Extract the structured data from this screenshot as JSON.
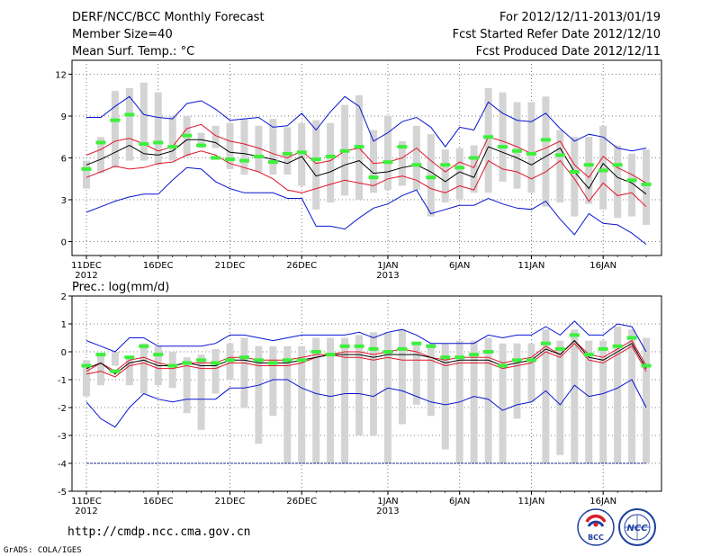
{
  "header": {
    "title": "DERF/NCC/BCC Monthly Forecast",
    "member_size": "Member Size=40",
    "variable": "Mean Surf. Temp.: °C",
    "period": "For 2012/12/11-2013/01/19",
    "started": "Fcst Started Refer Date 2012/12/10",
    "produced": "Fcst Produced Date 2012/12/11"
  },
  "footer": {
    "url": "http://cmdp.ncc.cma.gov.cn",
    "grads": "GrADS: COLA/IGES",
    "logo_bcc": "BCC",
    "logo_ncc": "NCC"
  },
  "colors": {
    "box": "#d4d4d4",
    "mean": "#000000",
    "spread": "#e0162b",
    "extreme": "#0a14d2",
    "obs": "#3cf03c"
  },
  "chart_data": [
    {
      "type": "box-ensemble",
      "title": "Mean Surf. Temp.: °C",
      "ylim": [
        -1,
        13
      ],
      "yticks": [
        0,
        3,
        6,
        9,
        12
      ],
      "xlabels": [
        {
          "day": 1,
          "label": "11DEC",
          "sub": "2012"
        },
        {
          "day": 6,
          "label": "16DEC"
        },
        {
          "day": 11,
          "label": "21DEC"
        },
        {
          "day": 16,
          "label": "26DEC"
        },
        {
          "day": 22,
          "label": "1JAN",
          "sub": "2013"
        },
        {
          "day": 27,
          "label": "6JAN"
        },
        {
          "day": 32,
          "label": "11JAN"
        },
        {
          "day": 37,
          "label": "16JAN"
        }
      ],
      "box_low": [
        3.8,
        4.9,
        5.3,
        5.8,
        5.8,
        5.5,
        5.8,
        6.1,
        6.7,
        6.7,
        5.2,
        4.8,
        5.0,
        4.8,
        4.8,
        4.0,
        2.3,
        2.8,
        3.3,
        3.0,
        3.5,
        3.7,
        4.0,
        3.7,
        1.8,
        2.8,
        3.0,
        3.5,
        3.5,
        4.3,
        3.8,
        3.5,
        2.5,
        2.8,
        1.8,
        2.7,
        2.3,
        1.7,
        1.8,
        1.2
      ],
      "box_high": [
        5.8,
        7.5,
        10.8,
        11.0,
        11.4,
        10.7,
        9.0,
        9.0,
        7.8,
        8.3,
        8.5,
        8.8,
        8.3,
        8.8,
        8.2,
        8.5,
        8.7,
        8.5,
        9.8,
        10.5,
        8.0,
        9.0,
        7.2,
        8.3,
        7.7,
        6.6,
        6.7,
        6.9,
        11.0,
        10.7,
        10.0,
        10.0,
        10.4,
        8.0,
        7.5,
        7.5,
        8.3,
        6.9,
        6.3,
        6.6
      ],
      "mean": [
        5.5,
        5.9,
        6.4,
        6.9,
        6.3,
        6.2,
        6.5,
        7.3,
        7.3,
        7.1,
        6.4,
        6.3,
        6.1,
        5.9,
        5.6,
        6.1,
        4.7,
        5.0,
        5.5,
        5.8,
        4.9,
        5.0,
        5.3,
        5.5,
        5.0,
        4.3,
        5.0,
        4.6,
        6.8,
        6.4,
        6.0,
        5.5,
        6.1,
        6.7,
        5.0,
        3.8,
        5.6,
        4.6,
        4.2,
        3.4
      ],
      "upper": [
        6.2,
        6.6,
        7.2,
        7.4,
        7.0,
        6.5,
        6.8,
        8.1,
        8.4,
        7.6,
        7.2,
        7.0,
        6.7,
        6.3,
        6.0,
        6.5,
        5.6,
        5.8,
        6.5,
        6.7,
        5.6,
        5.7,
        6.0,
        6.7,
        5.8,
        5.0,
        5.7,
        5.3,
        7.5,
        7.2,
        6.8,
        6.3,
        6.7,
        7.2,
        5.5,
        4.6,
        6.1,
        5.3,
        4.8,
        4.2
      ],
      "lower": [
        4.6,
        5.0,
        5.4,
        5.2,
        5.3,
        5.6,
        5.7,
        6.2,
        6.5,
        6.2,
        5.6,
        5.3,
        5.0,
        4.5,
        3.7,
        3.5,
        3.8,
        4.1,
        4.4,
        4.2,
        4.0,
        4.5,
        4.7,
        4.4,
        3.8,
        3.5,
        4.0,
        3.7,
        5.8,
        5.2,
        5.0,
        4.5,
        5.0,
        5.8,
        4.5,
        2.9,
        4.2,
        3.3,
        3.5,
        2.5
      ],
      "maxline": [
        8.9,
        8.9,
        9.7,
        10.4,
        9.1,
        8.9,
        8.8,
        9.9,
        10.1,
        9.5,
        8.7,
        8.8,
        8.9,
        8.2,
        8.3,
        9.2,
        8.0,
        9.3,
        10.4,
        9.7,
        7.2,
        7.8,
        8.6,
        8.9,
        8.2,
        6.8,
        8.2,
        8.0,
        10.0,
        9.2,
        8.7,
        8.6,
        9.2,
        8.1,
        7.2,
        7.7,
        7.5,
        6.7,
        6.5,
        6.7
      ],
      "minline": [
        2.1,
        2.5,
        2.9,
        3.2,
        3.4,
        3.4,
        4.4,
        5.3,
        5.2,
        4.3,
        3.8,
        3.5,
        3.5,
        3.5,
        3.1,
        3.1,
        1.1,
        1.1,
        0.9,
        1.7,
        2.4,
        2.7,
        3.3,
        3.7,
        2.0,
        2.3,
        2.6,
        2.6,
        3.1,
        2.7,
        2.4,
        2.3,
        2.9,
        1.6,
        0.5,
        2.0,
        1.3,
        1.2,
        0.6,
        -0.2
      ],
      "obs": [
        5.2,
        7.1,
        8.7,
        9.1,
        7.0,
        7.1,
        6.8,
        7.6,
        6.9,
        6.0,
        5.9,
        5.8,
        6.1,
        5.7,
        6.3,
        6.4,
        5.9,
        6.1,
        6.5,
        6.8,
        4.6,
        5.7,
        6.8,
        5.5,
        4.6,
        5.5,
        5.3,
        6.0,
        7.5,
        6.8,
        6.5,
        6.3,
        7.3,
        6.2,
        5.0,
        5.5,
        5.1,
        5.5,
        4.4,
        4.1
      ]
    },
    {
      "type": "box-ensemble",
      "title": "Prec.: log(mm/d)",
      "ylim": [
        -5,
        2
      ],
      "yticks": [
        -5,
        -4,
        -3,
        -2,
        -1,
        0,
        1,
        2
      ],
      "floor": -4.0,
      "xlabels": [
        {
          "day": 1,
          "label": "11DEC",
          "sub": "2012"
        },
        {
          "day": 6,
          "label": "16DEC"
        },
        {
          "day": 11,
          "label": "21DEC"
        },
        {
          "day": 16,
          "label": "26DEC"
        },
        {
          "day": 22,
          "label": "1JAN",
          "sub": "2013"
        },
        {
          "day": 27,
          "label": "6JAN"
        },
        {
          "day": 32,
          "label": "11JAN"
        },
        {
          "day": 37,
          "label": "16JAN"
        }
      ],
      "box_low": [
        -1.6,
        -1.2,
        -0.5,
        -1.2,
        -1.5,
        -1.2,
        -1.3,
        -2.2,
        -2.8,
        -1.5,
        -1.0,
        -2.0,
        -3.3,
        -2.3,
        -4.0,
        -4.0,
        -4.0,
        -4.0,
        -4.0,
        -3.0,
        -3.0,
        -4.0,
        -2.6,
        -1.9,
        -2.3,
        -3.5,
        -4.0,
        -4.0,
        -4.0,
        -4.0,
        -2.4,
        -1.8,
        -4.0,
        -3.7,
        -4.0,
        -4.0,
        -4.0,
        -4.0,
        -4.0,
        -4.0
      ],
      "box_high": [
        -0.3,
        -0.1,
        0.0,
        -0.2,
        0.3,
        0.2,
        0.0,
        -0.2,
        -0.1,
        0.1,
        0.3,
        0.5,
        0.2,
        0.2,
        0.2,
        0.2,
        0.5,
        0.5,
        0.5,
        0.6,
        0.7,
        0.7,
        0.8,
        0.3,
        0.3,
        0.3,
        0.4,
        0.4,
        0.5,
        0.3,
        0.3,
        0.3,
        0.8,
        0.4,
        0.8,
        0.4,
        0.4,
        0.9,
        0.8,
        0.5
      ],
      "mean": [
        -0.6,
        -0.4,
        -0.8,
        -0.4,
        -0.3,
        -0.5,
        -0.5,
        -0.4,
        -0.5,
        -0.5,
        -0.3,
        -0.3,
        -0.4,
        -0.4,
        -0.4,
        -0.3,
        -0.2,
        -0.1,
        -0.1,
        -0.1,
        -0.2,
        -0.1,
        -0.1,
        -0.1,
        -0.2,
        -0.4,
        -0.3,
        -0.3,
        -0.3,
        -0.5,
        -0.4,
        -0.3,
        0.1,
        -0.1,
        0.4,
        -0.2,
        -0.3,
        0.0,
        0.3,
        -0.6
      ],
      "upper": [
        -0.7,
        -0.4,
        -0.7,
        -0.3,
        -0.2,
        -0.4,
        -0.5,
        -0.4,
        -0.4,
        -0.4,
        -0.2,
        -0.2,
        -0.3,
        -0.3,
        -0.3,
        -0.2,
        -0.1,
        -0.1,
        0.0,
        0.0,
        -0.1,
        0.0,
        0.1,
        0.0,
        -0.2,
        -0.3,
        -0.2,
        -0.2,
        -0.2,
        -0.4,
        -0.3,
        -0.2,
        0.2,
        -0.1,
        0.4,
        -0.1,
        -0.2,
        0.1,
        0.4,
        -0.5
      ],
      "lower": [
        -0.8,
        -0.7,
        -0.9,
        -0.5,
        -0.4,
        -0.6,
        -0.6,
        -0.5,
        -0.6,
        -0.6,
        -0.4,
        -0.4,
        -0.5,
        -0.5,
        -0.5,
        -0.4,
        -0.2,
        -0.1,
        -0.2,
        -0.2,
        -0.3,
        -0.2,
        -0.3,
        -0.3,
        -0.3,
        -0.5,
        -0.4,
        -0.4,
        -0.4,
        -0.6,
        -0.5,
        -0.4,
        0.0,
        -0.2,
        0.3,
        -0.3,
        -0.4,
        -0.1,
        0.2,
        -0.7
      ],
      "maxline": [
        0.4,
        0.2,
        0.0,
        0.5,
        0.5,
        0.2,
        0.2,
        0.2,
        0.2,
        0.3,
        0.6,
        0.6,
        0.5,
        0.4,
        0.5,
        0.6,
        0.6,
        0.6,
        0.6,
        0.7,
        0.5,
        0.7,
        0.8,
        0.6,
        0.3,
        0.3,
        0.3,
        0.3,
        0.6,
        0.5,
        0.6,
        0.6,
        0.9,
        0.6,
        1.1,
        0.6,
        0.6,
        1.0,
        0.9,
        0.0
      ],
      "minline": [
        -1.8,
        -2.4,
        -2.7,
        -2.0,
        -1.5,
        -1.7,
        -1.8,
        -1.7,
        -1.7,
        -1.7,
        -1.3,
        -1.3,
        -1.2,
        -1.0,
        -1.0,
        -1.3,
        -1.5,
        -1.6,
        -1.5,
        -1.5,
        -1.6,
        -1.3,
        -1.4,
        -1.6,
        -1.8,
        -1.9,
        -1.8,
        -1.6,
        -1.7,
        -2.1,
        -1.9,
        -1.8,
        -1.4,
        -1.9,
        -1.2,
        -1.6,
        -1.5,
        -1.3,
        -1.0,
        -2.0
      ],
      "obs": [
        -0.5,
        -0.1,
        -0.7,
        -0.2,
        0.2,
        -0.1,
        -0.5,
        -0.4,
        -0.3,
        -0.4,
        -0.3,
        -0.2,
        -0.3,
        -0.4,
        -0.3,
        -0.3,
        0.0,
        -0.1,
        0.2,
        0.2,
        0.1,
        0.0,
        0.1,
        0.3,
        0.2,
        -0.2,
        -0.2,
        -0.1,
        0.0,
        -0.5,
        -0.3,
        -0.3,
        0.3,
        0.1,
        0.6,
        -0.1,
        0.1,
        0.2,
        0.5,
        -0.5
      ]
    }
  ]
}
